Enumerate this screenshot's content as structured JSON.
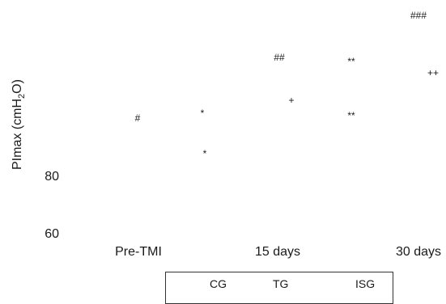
{
  "chart_data": {
    "type": "scatter",
    "ylabel": "PImax (cmH2O)",
    "ylabel_parts": {
      "main": "PImax (cmH",
      "sub": "2",
      "tail": "O)"
    },
    "categories": [
      "Pre-TMI",
      "15 days",
      "30 days"
    ],
    "y_ticks": [
      80,
      60
    ],
    "annotations": [
      {
        "text": "#"
      },
      {
        "text": "*"
      },
      {
        "text": "*"
      },
      {
        "text": "##"
      },
      {
        "text": "+"
      },
      {
        "text": "**"
      },
      {
        "text": "**"
      },
      {
        "text": "###"
      },
      {
        "text": "++"
      }
    ],
    "legend": {
      "entries": [
        "CG",
        "TG",
        "ISG"
      ],
      "placement": "bottom-center"
    }
  }
}
